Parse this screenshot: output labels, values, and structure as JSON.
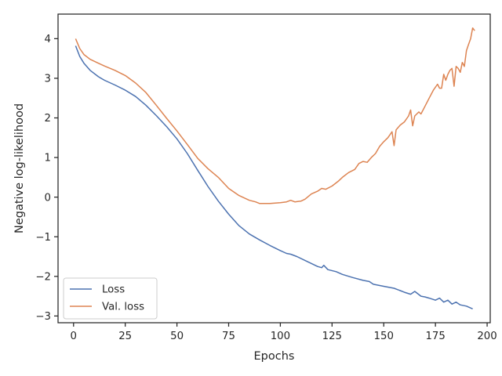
{
  "chart_data": {
    "type": "line",
    "xlabel": "Epochs",
    "ylabel": "Negative log-likelihood",
    "xlim": [
      -7.5,
      201.5
    ],
    "ylim": [
      -3.17,
      4.62
    ],
    "x_ticks": [
      0,
      25,
      50,
      75,
      100,
      125,
      150,
      175,
      200
    ],
    "x_tick_labels": [
      "0",
      "25",
      "50",
      "75",
      "100",
      "125",
      "150",
      "175",
      "200"
    ],
    "y_ticks": [
      -3,
      -2,
      -1,
      0,
      1,
      2,
      3,
      4
    ],
    "y_tick_labels": [
      "−3",
      "−2",
      "−1",
      "0",
      "1",
      "2",
      "3",
      "4"
    ],
    "grid": false,
    "legend_position": "lower-left",
    "series": [
      {
        "name": "Loss",
        "color": "#4c72b0",
        "points": [
          [
            1,
            3.82
          ],
          [
            3,
            3.55
          ],
          [
            5,
            3.38
          ],
          [
            8,
            3.2
          ],
          [
            12,
            3.04
          ],
          [
            15,
            2.95
          ],
          [
            20,
            2.83
          ],
          [
            25,
            2.7
          ],
          [
            30,
            2.54
          ],
          [
            35,
            2.32
          ],
          [
            40,
            2.06
          ],
          [
            45,
            1.78
          ],
          [
            50,
            1.47
          ],
          [
            55,
            1.1
          ],
          [
            60,
            0.68
          ],
          [
            65,
            0.27
          ],
          [
            70,
            -0.1
          ],
          [
            75,
            -0.43
          ],
          [
            80,
            -0.72
          ],
          [
            85,
            -0.93
          ],
          [
            90,
            -1.08
          ],
          [
            95,
            -1.22
          ],
          [
            100,
            -1.35
          ],
          [
            103,
            -1.42
          ],
          [
            105,
            -1.44
          ],
          [
            108,
            -1.5
          ],
          [
            112,
            -1.6
          ],
          [
            118,
            -1.75
          ],
          [
            120,
            -1.78
          ],
          [
            121,
            -1.72
          ],
          [
            123,
            -1.83
          ],
          [
            127,
            -1.88
          ],
          [
            130,
            -1.95
          ],
          [
            135,
            -2.03
          ],
          [
            140,
            -2.1
          ],
          [
            143,
            -2.13
          ],
          [
            145,
            -2.2
          ],
          [
            150,
            -2.25
          ],
          [
            155,
            -2.3
          ],
          [
            158,
            -2.36
          ],
          [
            160,
            -2.4
          ],
          [
            163,
            -2.45
          ],
          [
            165,
            -2.38
          ],
          [
            168,
            -2.5
          ],
          [
            170,
            -2.52
          ],
          [
            172,
            -2.55
          ],
          [
            175,
            -2.6
          ],
          [
            177,
            -2.55
          ],
          [
            179,
            -2.65
          ],
          [
            181,
            -2.6
          ],
          [
            183,
            -2.7
          ],
          [
            185,
            -2.65
          ],
          [
            187,
            -2.72
          ],
          [
            190,
            -2.75
          ],
          [
            193,
            -2.82
          ]
        ]
      },
      {
        "name": "Val. loss",
        "color": "#dd8452",
        "points": [
          [
            1,
            4.0
          ],
          [
            3,
            3.75
          ],
          [
            5,
            3.6
          ],
          [
            8,
            3.48
          ],
          [
            12,
            3.38
          ],
          [
            15,
            3.31
          ],
          [
            20,
            3.2
          ],
          [
            25,
            3.07
          ],
          [
            30,
            2.88
          ],
          [
            35,
            2.64
          ],
          [
            40,
            2.32
          ],
          [
            45,
            1.99
          ],
          [
            50,
            1.67
          ],
          [
            55,
            1.33
          ],
          [
            60,
            0.98
          ],
          [
            65,
            0.72
          ],
          [
            70,
            0.5
          ],
          [
            75,
            0.22
          ],
          [
            80,
            0.04
          ],
          [
            85,
            -0.08
          ],
          [
            88,
            -0.12
          ],
          [
            90,
            -0.16
          ],
          [
            95,
            -0.16
          ],
          [
            100,
            -0.14
          ],
          [
            103,
            -0.12
          ],
          [
            105,
            -0.08
          ],
          [
            107,
            -0.12
          ],
          [
            110,
            -0.1
          ],
          [
            112,
            -0.05
          ],
          [
            115,
            0.08
          ],
          [
            118,
            0.15
          ],
          [
            120,
            0.22
          ],
          [
            122,
            0.2
          ],
          [
            125,
            0.28
          ],
          [
            128,
            0.4
          ],
          [
            130,
            0.5
          ],
          [
            133,
            0.62
          ],
          [
            136,
            0.7
          ],
          [
            138,
            0.85
          ],
          [
            140,
            0.9
          ],
          [
            142,
            0.88
          ],
          [
            144,
            1.0
          ],
          [
            146,
            1.1
          ],
          [
            148,
            1.28
          ],
          [
            150,
            1.4
          ],
          [
            152,
            1.5
          ],
          [
            154,
            1.65
          ],
          [
            155,
            1.3
          ],
          [
            156,
            1.7
          ],
          [
            158,
            1.82
          ],
          [
            160,
            1.9
          ],
          [
            162,
            2.05
          ],
          [
            163,
            2.2
          ],
          [
            164,
            1.8
          ],
          [
            165,
            2.05
          ],
          [
            167,
            2.15
          ],
          [
            168,
            2.1
          ],
          [
            170,
            2.3
          ],
          [
            172,
            2.5
          ],
          [
            174,
            2.7
          ],
          [
            176,
            2.85
          ],
          [
            177,
            2.75
          ],
          [
            178,
            2.75
          ],
          [
            179,
            3.1
          ],
          [
            180,
            2.95
          ],
          [
            181,
            3.1
          ],
          [
            182,
            3.2
          ],
          [
            183,
            3.25
          ],
          [
            184,
            2.8
          ],
          [
            185,
            3.3
          ],
          [
            186,
            3.25
          ],
          [
            187,
            3.15
          ],
          [
            188,
            3.4
          ],
          [
            189,
            3.3
          ],
          [
            190,
            3.7
          ],
          [
            191,
            3.85
          ],
          [
            192,
            4.0
          ],
          [
            193,
            4.27
          ],
          [
            194,
            4.2
          ]
        ]
      }
    ]
  }
}
